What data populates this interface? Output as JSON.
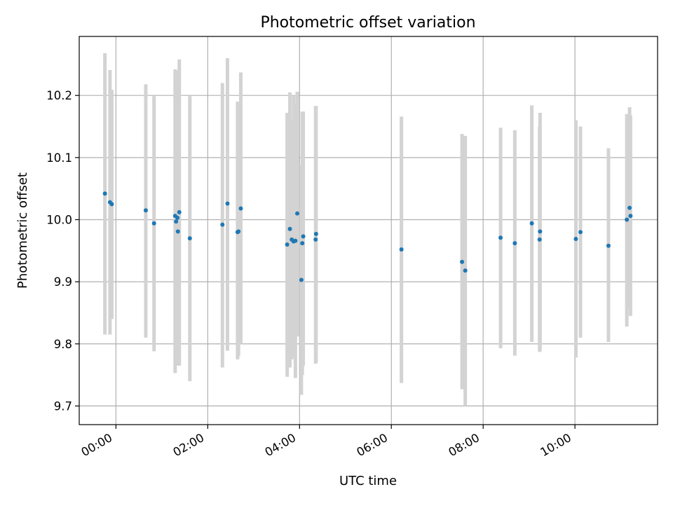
{
  "chart_data": {
    "type": "scatter",
    "title": "Photometric offset variation",
    "xlabel": "UTC time",
    "ylabel": "Photometric offset",
    "x_ticks": [
      "00:00",
      "02:00",
      "04:00",
      "06:00",
      "08:00",
      "10:00"
    ],
    "y_ticks": [
      "9.7",
      "9.8",
      "9.9",
      "10.0",
      "10.1",
      "10.2"
    ],
    "x_unit": "hours (UTC)",
    "xlim": [
      -0.8,
      11.8
    ],
    "ylim": [
      9.67,
      10.295
    ],
    "grid": true,
    "colors": {
      "points": "#1f77b4",
      "errorbars": "#d3d3d3",
      "grid": "#b0b0b0"
    },
    "points": [
      {
        "x": -0.24,
        "y": 10.042,
        "lo": 9.815,
        "hi": 10.268
      },
      {
        "x": -0.13,
        "y": 10.028,
        "lo": 9.815,
        "hi": 10.241
      },
      {
        "x": -0.09,
        "y": 10.025,
        "lo": 9.84,
        "hi": 10.209
      },
      {
        "x": 0.65,
        "y": 10.015,
        "lo": 9.81,
        "hi": 10.218
      },
      {
        "x": 0.83,
        "y": 9.994,
        "lo": 9.788,
        "hi": 10.199
      },
      {
        "x": 1.29,
        "y": 10.006,
        "lo": 9.753,
        "hi": 10.242
      },
      {
        "x": 1.31,
        "y": 9.997,
        "lo": 9.77,
        "hi": 10.225
      },
      {
        "x": 1.34,
        "y": 10.003,
        "lo": 9.765,
        "hi": 10.24
      },
      {
        "x": 1.35,
        "y": 9.981,
        "lo": 9.78,
        "hi": 10.19
      },
      {
        "x": 1.38,
        "y": 10.012,
        "lo": 9.765,
        "hi": 10.258
      },
      {
        "x": 1.61,
        "y": 9.97,
        "lo": 9.74,
        "hi": 10.199
      },
      {
        "x": 2.32,
        "y": 9.992,
        "lo": 9.762,
        "hi": 10.22
      },
      {
        "x": 2.43,
        "y": 10.026,
        "lo": 9.789,
        "hi": 10.26
      },
      {
        "x": 2.65,
        "y": 9.98,
        "lo": 9.775,
        "hi": 10.19
      },
      {
        "x": 2.67,
        "y": 9.981,
        "lo": 9.78,
        "hi": 10.19
      },
      {
        "x": 2.72,
        "y": 10.018,
        "lo": 9.8,
        "hi": 10.237
      },
      {
        "x": 3.73,
        "y": 9.96,
        "lo": 9.747,
        "hi": 10.172
      },
      {
        "x": 3.79,
        "y": 9.985,
        "lo": 9.762,
        "hi": 10.205
      },
      {
        "x": 3.83,
        "y": 9.968,
        "lo": 9.775,
        "hi": 10.16
      },
      {
        "x": 3.87,
        "y": 9.965,
        "lo": 9.78,
        "hi": 10.2
      },
      {
        "x": 3.91,
        "y": 9.966,
        "lo": 9.745,
        "hi": 10.187
      },
      {
        "x": 3.95,
        "y": 10.01,
        "lo": 9.812,
        "hi": 10.206
      },
      {
        "x": 4.04,
        "y": 9.903,
        "lo": 9.718,
        "hi": 10.088
      },
      {
        "x": 4.06,
        "y": 9.962,
        "lo": 9.75,
        "hi": 10.174
      },
      {
        "x": 4.08,
        "y": 9.973,
        "lo": 9.765,
        "hi": 10.174
      },
      {
        "x": 4.35,
        "y": 9.968,
        "lo": 9.768,
        "hi": 10.183
      },
      {
        "x": 4.36,
        "y": 9.977,
        "lo": 9.77,
        "hi": 10.183
      },
      {
        "x": 6.22,
        "y": 9.952,
        "lo": 9.737,
        "hi": 10.166
      },
      {
        "x": 7.54,
        "y": 9.932,
        "lo": 9.727,
        "hi": 10.138
      },
      {
        "x": 7.61,
        "y": 9.918,
        "lo": 9.7,
        "hi": 10.135
      },
      {
        "x": 8.38,
        "y": 9.971,
        "lo": 9.793,
        "hi": 10.148
      },
      {
        "x": 8.69,
        "y": 9.962,
        "lo": 9.781,
        "hi": 10.144
      },
      {
        "x": 9.06,
        "y": 9.994,
        "lo": 9.803,
        "hi": 10.184
      },
      {
        "x": 9.23,
        "y": 9.968,
        "lo": 9.787,
        "hi": 10.15
      },
      {
        "x": 9.24,
        "y": 9.981,
        "lo": 9.79,
        "hi": 10.172
      },
      {
        "x": 10.02,
        "y": 9.969,
        "lo": 9.778,
        "hi": 10.16
      },
      {
        "x": 10.12,
        "y": 9.98,
        "lo": 9.81,
        "hi": 10.15
      },
      {
        "x": 10.73,
        "y": 9.958,
        "lo": 9.803,
        "hi": 10.115
      },
      {
        "x": 11.13,
        "y": 10.0,
        "lo": 9.828,
        "hi": 10.17
      },
      {
        "x": 11.19,
        "y": 10.019,
        "lo": 9.857,
        "hi": 10.181
      },
      {
        "x": 11.21,
        "y": 10.006,
        "lo": 9.845,
        "hi": 10.168
      }
    ]
  }
}
